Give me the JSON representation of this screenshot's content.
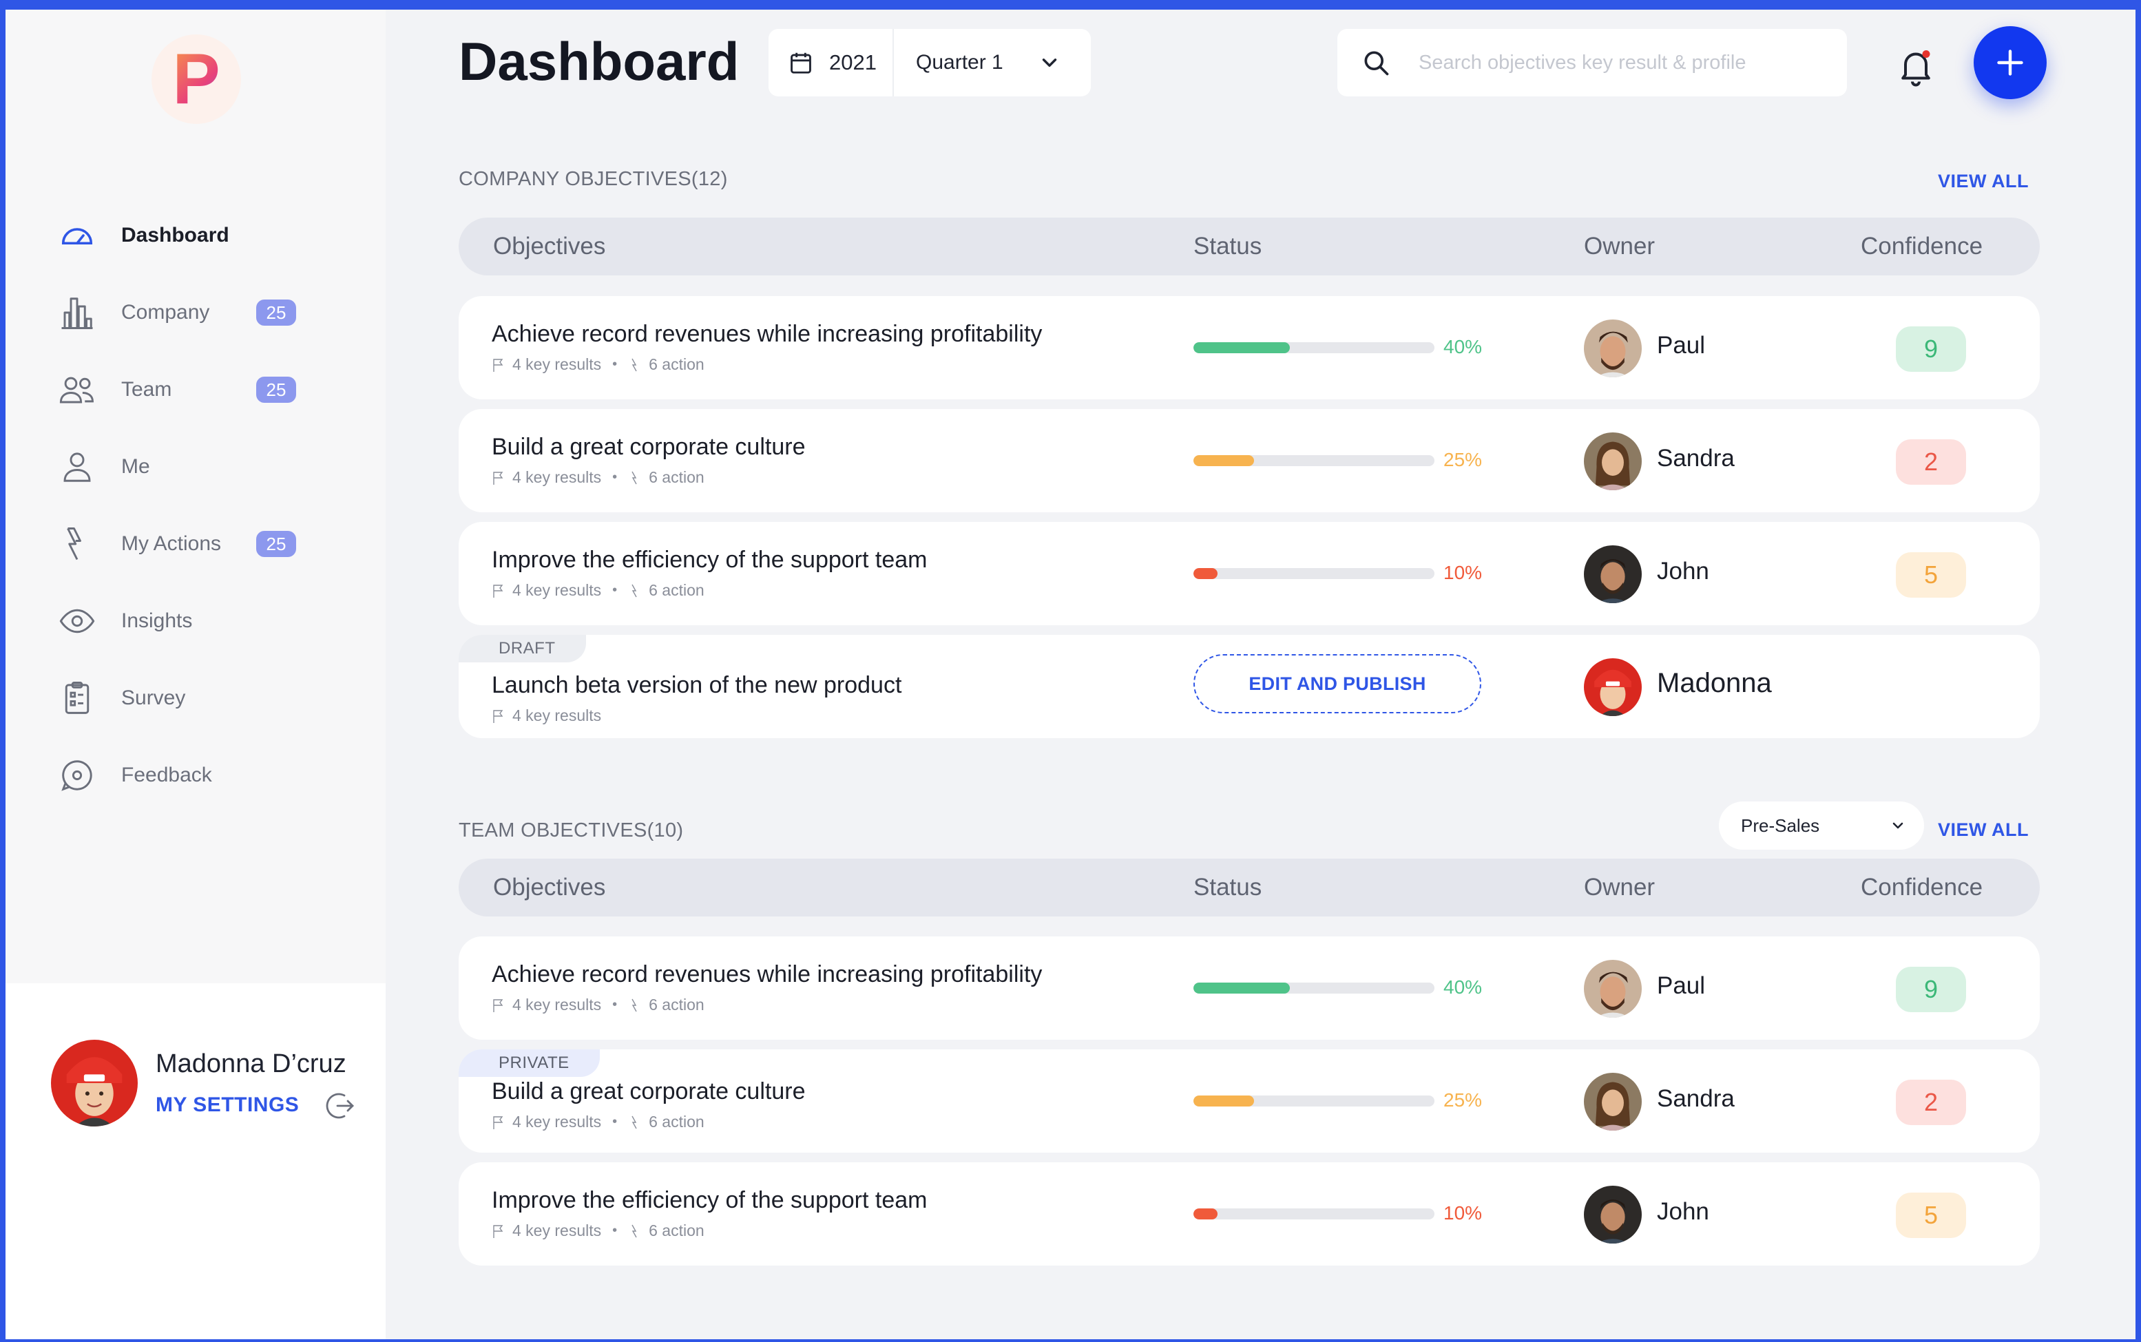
{
  "colors": {
    "accent": "#2f56e6",
    "add_button": "#1238ef",
    "progress_high": "#4fc389",
    "progress_mid": "#f7b34f",
    "progress_low": "#f05a3a",
    "badge": "#8c98ee"
  },
  "brand": {
    "logo_letter": "P"
  },
  "sidebar": {
    "items": [
      {
        "label": "Dashboard",
        "icon": "gauge-icon",
        "badge": "",
        "active": true
      },
      {
        "label": "Company",
        "icon": "buildings-icon",
        "badge": "25"
      },
      {
        "label": "Team",
        "icon": "users-icon",
        "badge": "25"
      },
      {
        "label": "Me",
        "icon": "user-icon",
        "badge": ""
      },
      {
        "label": "My Actions",
        "icon": "lightning-icon",
        "badge": "25"
      },
      {
        "label": "Insights",
        "icon": "eye-icon",
        "badge": ""
      },
      {
        "label": "Survey",
        "icon": "clipboard-icon",
        "badge": ""
      },
      {
        "label": "Feedback",
        "icon": "chat-icon",
        "badge": ""
      }
    ],
    "profile": {
      "name": "Madonna D’cruz",
      "settings_label": "MY SETTINGS"
    }
  },
  "header": {
    "title": "Dashboard",
    "year": "2021",
    "quarter": "Quarter 1",
    "search_placeholder": "Search objectives key result & profile"
  },
  "company_objectives": {
    "title": "COMPANY OBJECTIVES(12)",
    "view_all": "VIEW ALL",
    "columns": [
      "Objectives",
      "Status",
      "Owner",
      "Confidence"
    ],
    "rows": [
      {
        "title": "Achieve record revenues while increasing profitability",
        "key_results": "4 key results",
        "actions": "6 action",
        "progress": 40,
        "progress_label": "40%",
        "owner": "Paul",
        "confidence": "9",
        "level": "high"
      },
      {
        "title": "Build a great corporate culture",
        "key_results": "4 key results",
        "actions": "6 action",
        "progress": 25,
        "progress_label": "25%",
        "owner": "Sandra",
        "confidence": "2",
        "level": "low"
      },
      {
        "title": "Improve the efficiency of the support team",
        "key_results": "4 key results",
        "actions": "6 action",
        "progress": 10,
        "progress_label": "10%",
        "owner": "John",
        "confidence": "5",
        "level": "mid"
      },
      {
        "tag": "DRAFT",
        "title": "Launch beta version of the new product",
        "key_results": "4 key results",
        "action_button": "EDIT AND PUBLISH",
        "owner": "Madonna"
      }
    ]
  },
  "team_objectives": {
    "title": "TEAM OBJECTIVES(10)",
    "view_all": "VIEW ALL",
    "team_filter": "Pre-Sales",
    "columns": [
      "Objectives",
      "Status",
      "Owner",
      "Confidence"
    ],
    "rows": [
      {
        "title": "Achieve record revenues while increasing profitability",
        "key_results": "4 key results",
        "actions": "6 action",
        "progress": 40,
        "progress_label": "40%",
        "owner": "Paul",
        "confidence": "9",
        "level": "high"
      },
      {
        "tag": "PRIVATE",
        "title": "Build a great corporate culture",
        "key_results": "4 key results",
        "actions": "6 action",
        "progress": 25,
        "progress_label": "25%",
        "owner": "Sandra",
        "confidence": "2",
        "level": "low"
      },
      {
        "title": "Improve the efficiency of the support team",
        "key_results": "4 key results",
        "actions": "6 action",
        "progress": 10,
        "progress_label": "10%",
        "owner": "John",
        "confidence": "5",
        "level": "mid"
      }
    ]
  }
}
